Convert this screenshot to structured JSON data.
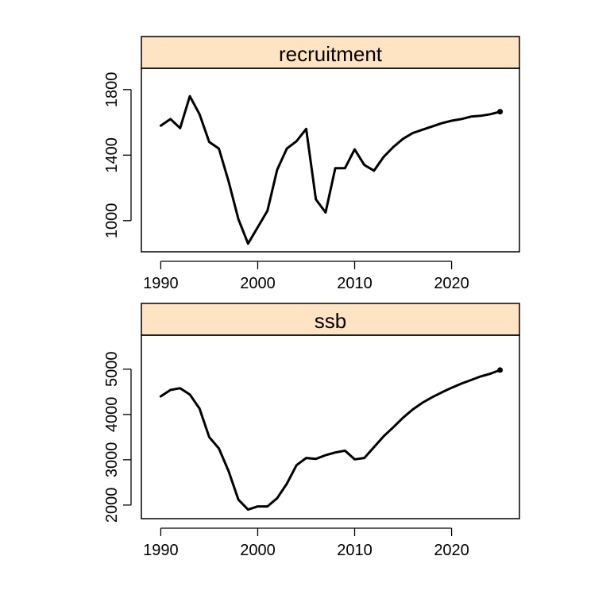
{
  "colors": {
    "strip_fill": "#FFE4C4",
    "line": "#000000",
    "background": "#FFFFFF"
  },
  "chart_data": [
    {
      "type": "line",
      "title": "recruitment",
      "xlabel": "",
      "ylabel": "",
      "xlim": [
        1988,
        2027
      ],
      "ylim": [
        810,
        1930
      ],
      "xticks": [
        1990,
        2000,
        2010,
        2020
      ],
      "yticks": [
        1000,
        1400,
        1800
      ],
      "grid": false,
      "series": [
        {
          "x": [
            1990,
            1991,
            1992,
            1993,
            1994,
            1995,
            1996,
            1997,
            1998,
            1999,
            2000,
            2001,
            2002,
            2003,
            2004,
            2005,
            2006,
            2007,
            2008,
            2009,
            2010,
            2011,
            2012,
            2013,
            2014,
            2015,
            2016,
            2017,
            2018,
            2019,
            2020,
            2021,
            2022,
            2023,
            2024,
            2025
          ],
          "values": [
            1580,
            1620,
            1565,
            1760,
            1650,
            1480,
            1440,
            1240,
            1010,
            860,
            960,
            1060,
            1310,
            1440,
            1485,
            1560,
            1130,
            1050,
            1320,
            1320,
            1435,
            1340,
            1305,
            1390,
            1450,
            1500,
            1535,
            1555,
            1575,
            1595,
            1610,
            1620,
            1635,
            1640,
            1650,
            1665
          ]
        }
      ]
    },
    {
      "type": "line",
      "title": "ssb",
      "xlabel": "",
      "ylabel": "",
      "xlim": [
        1988,
        2027
      ],
      "ylim": [
        1700,
        5750
      ],
      "xticks": [
        1990,
        2000,
        2010,
        2020
      ],
      "yticks": [
        2000,
        3000,
        4000,
        5000
      ],
      "grid": false,
      "series": [
        {
          "x": [
            1990,
            1991,
            1992,
            1993,
            1994,
            1995,
            1996,
            1997,
            1998,
            1999,
            2000,
            2001,
            2002,
            2003,
            2004,
            2005,
            2006,
            2007,
            2008,
            2009,
            2010,
            2011,
            2012,
            2013,
            2014,
            2015,
            2016,
            2017,
            2018,
            2019,
            2020,
            2021,
            2022,
            2023,
            2024,
            2025
          ],
          "values": [
            4400,
            4540,
            4580,
            4440,
            4130,
            3500,
            3250,
            2750,
            2120,
            1900,
            1970,
            1970,
            2150,
            2470,
            2880,
            3040,
            3020,
            3100,
            3160,
            3200,
            3010,
            3040,
            3280,
            3520,
            3720,
            3930,
            4110,
            4260,
            4380,
            4490,
            4590,
            4680,
            4760,
            4840,
            4900,
            4980
          ]
        }
      ]
    }
  ]
}
